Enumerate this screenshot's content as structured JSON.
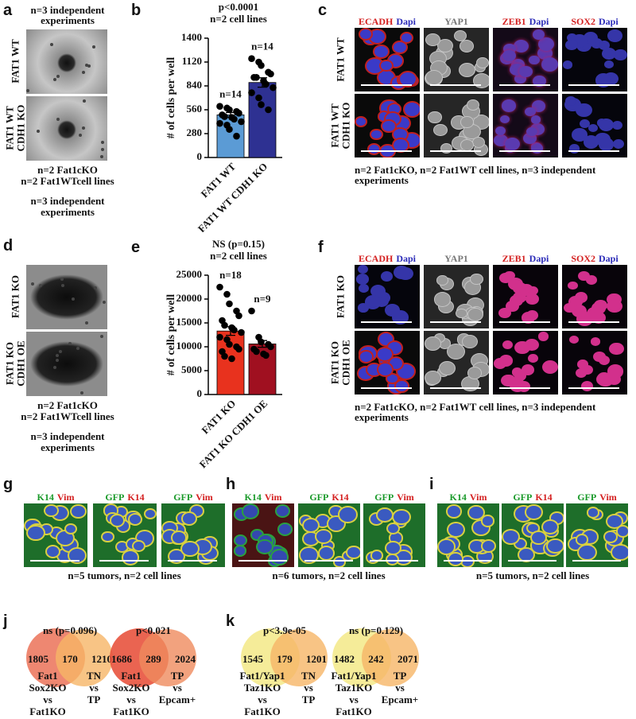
{
  "panels": {
    "a": {
      "label": "a",
      "top_note": [
        "n=3 independent",
        "experiments"
      ],
      "rows": [
        [
          "FAT1 WT"
        ],
        [
          "FAT1 WT",
          "CDH1 KO"
        ]
      ],
      "notes": [
        [
          "n=2 Fat1cKO",
          "n=2 Fat1WTcell lines"
        ],
        [
          "n=3 independent",
          "experiments"
        ]
      ]
    },
    "c": {
      "label": "c",
      "columns": [
        [
          "ECADH",
          "Dapi"
        ],
        [
          "YAP1"
        ],
        [
          "ZEB1",
          "Dapi"
        ],
        [
          "SOX2",
          "Dapi"
        ]
      ],
      "rows": [
        [
          "FAT1 WT"
        ],
        [
          "FAT1 WT",
          "CDH1 KO"
        ]
      ],
      "note": [
        "n=2 Fat1cKO, n=2 Fat1WT cell lines, n=3 independent",
        "experiments"
      ]
    },
    "d": {
      "label": "d",
      "rows": [
        [
          "FAT1 KO"
        ],
        [
          "FAT1 KO",
          "CDH1 OE"
        ]
      ],
      "notes": [
        [
          "n=2 Fat1cKO",
          "n=2 Fat1WTcell lines"
        ],
        [
          "n=3 independent",
          "experiments"
        ]
      ]
    },
    "f": {
      "label": "f",
      "columns": [
        [
          "ECADH",
          "Dapi"
        ],
        [
          "YAP1"
        ],
        [
          "ZEB1",
          "Dapi"
        ],
        [
          "SOX2",
          "Dapi"
        ]
      ],
      "rows": [
        [
          "FAT1 KO"
        ],
        [
          "FAT1 KO",
          "CDH1 OE"
        ]
      ],
      "note": [
        "n=2 Fat1cKO, n=2 Fat1WT cell lines, n=3 independent",
        "experiments"
      ]
    },
    "g": {
      "label": "g",
      "columns": [
        [
          "K14",
          "Vim"
        ],
        [
          "GFP",
          "K14"
        ],
        [
          "GFP",
          "Vim"
        ]
      ],
      "note": "n=5 tumors, n=2 cell lines"
    },
    "h": {
      "label": "h",
      "columns": [
        [
          "K14",
          "Vim"
        ],
        [
          "GFP",
          "K14"
        ],
        [
          "GFP",
          "Vim"
        ]
      ],
      "note": "n=6 tumors, n=2 cell lines"
    },
    "i": {
      "label": "i",
      "columns": [
        [
          "K14",
          "Vim"
        ],
        [
          "GFP",
          "K14"
        ],
        [
          "GFP",
          "Vim"
        ]
      ],
      "note": "n=5 tumors, n=2 cell lines"
    },
    "j": {
      "label": "j",
      "venns": [
        {
          "title": "ns (p=0.096)",
          "counts": [
            1805,
            170,
            1210
          ],
          "left": [
            "Fat1",
            "Sox2KO",
            "vs",
            "Fat1KO"
          ],
          "right": [
            "TN",
            "vs",
            "TP"
          ]
        },
        {
          "title": "p<0.021",
          "counts": [
            1686,
            289,
            2024
          ],
          "left": [
            "Fat1",
            "Sox2KO",
            "vs",
            "Fat1KO"
          ],
          "right": [
            "TP",
            "vs",
            "Epcam+"
          ]
        }
      ]
    },
    "k": {
      "label": "k",
      "venns": [
        {
          "title": "p<3.9e-05",
          "counts": [
            1545,
            179,
            1201
          ],
          "left": [
            "Fat1/Yap1",
            "Taz1KO",
            "vs",
            "Fat1KO"
          ],
          "right": [
            "TN",
            "vs",
            "TP"
          ]
        },
        {
          "title": "ns (p=0.129)",
          "counts": [
            1482,
            242,
            2071
          ],
          "left": [
            "Fat1/Yap1",
            "Taz1KO",
            "vs",
            "Fat1KO"
          ],
          "right": [
            "TP",
            "vs",
            "Epcam+"
          ]
        }
      ]
    }
  },
  "chart_data": [
    {
      "type": "bar",
      "label": "b",
      "annotations": [
        "p<0.0001",
        "n=2 cell lines"
      ],
      "ylabel": "# of cells per well",
      "categories": [
        "FAT1 WT",
        "FAT1 WT CDH1 KO"
      ],
      "values": [
        500,
        880
      ],
      "errors": [
        28,
        55
      ],
      "colors": [
        "#5b9bd5",
        "#2e3192"
      ],
      "n_labels": [
        "n=14",
        "n=14"
      ],
      "point_values": [
        [
          600,
          580,
          560,
          540,
          520,
          500,
          480,
          470,
          450,
          420,
          400,
          380,
          330,
          250
        ],
        [
          1160,
          1120,
          1080,
          1000,
          980,
          940,
          940,
          900,
          860,
          820,
          760,
          700,
          620,
          560
        ]
      ],
      "ylim": [
        0,
        1400
      ],
      "yticks": [
        0,
        280,
        560,
        840,
        1120,
        1400
      ]
    },
    {
      "type": "bar",
      "label": "e",
      "annotations": [
        "NS (p=0.15)",
        "n=2 cell lines"
      ],
      "ylabel": "# of cells per well",
      "categories": [
        "FAT1 KO",
        "FAT1 KO CDH1 OE"
      ],
      "values": [
        13300,
        10600
      ],
      "errors": [
        900,
        700
      ],
      "colors": [
        "#e8321e",
        "#a01020"
      ],
      "n_labels": [
        "n=18",
        "n=9"
      ],
      "point_values": [
        [
          22500,
          21000,
          19000,
          17500,
          16500,
          15500,
          14500,
          14000,
          13500,
          13000,
          12000,
          11500,
          10500,
          10000,
          9500,
          9000,
          8000,
          7500
        ],
        [
          17500,
          12000,
          11000,
          10500,
          10000,
          9500,
          9000,
          8500,
          8200
        ]
      ],
      "ylim": [
        0,
        25000
      ],
      "yticks": [
        0,
        5000,
        10000,
        15000,
        20000,
        25000
      ]
    }
  ]
}
